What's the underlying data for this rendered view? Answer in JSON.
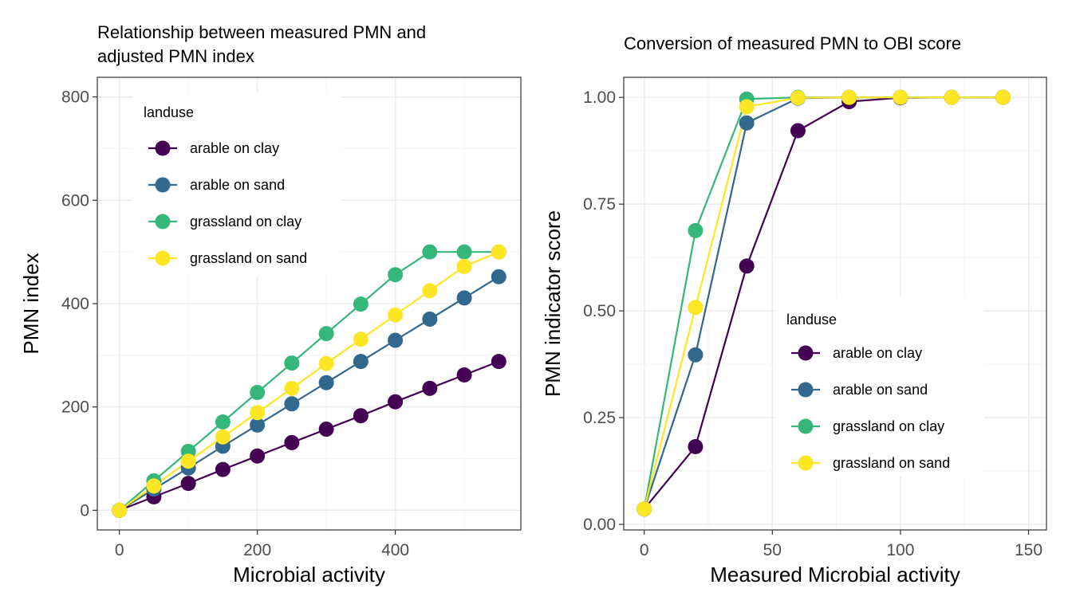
{
  "colors": {
    "arable on clay": "#440154",
    "arable on sand": "#31688E",
    "grassland on clay": "#35B779",
    "grassland on sand": "#FDE725"
  },
  "chart_data": [
    {
      "type": "line",
      "title_lines": [
        "Relationship between measured PMN and",
        "adjusted PMN index"
      ],
      "xlabel": "Microbial activity",
      "ylabel": "PMN index",
      "xlim": [
        -32,
        582
      ],
      "ylim": [
        -38,
        838
      ],
      "xticks": [
        0,
        200,
        400
      ],
      "yticks": [
        0,
        200,
        400,
        600,
        800
      ],
      "xminor": [
        100,
        300,
        500
      ],
      "yminor": [
        100,
        300,
        500,
        700
      ],
      "grid": true,
      "legend": {
        "title": "landuse",
        "position": "top-left",
        "entries": [
          "arable on clay",
          "arable on sand",
          "grassland on clay",
          "grassland on sand"
        ]
      },
      "x": [
        0,
        50,
        100,
        150,
        200,
        250,
        300,
        350,
        400,
        450,
        500,
        550
      ],
      "series": [
        {
          "name": "arable on clay",
          "values": [
            0,
            26,
            52,
            79,
            105,
            131,
            157,
            183,
            210,
            236,
            262,
            288
          ]
        },
        {
          "name": "arable on sand",
          "values": [
            0,
            41,
            82,
            124,
            165,
            206,
            247,
            288,
            329,
            370,
            411,
            452
          ]
        },
        {
          "name": "grassland on clay",
          "values": [
            0,
            57,
            114,
            171,
            228,
            285,
            342,
            399,
            456,
            500,
            500,
            500
          ]
        },
        {
          "name": "grassland on sand",
          "values": [
            0,
            47,
            95,
            142,
            189,
            236,
            284,
            331,
            378,
            425,
            472,
            500
          ]
        }
      ]
    },
    {
      "type": "line",
      "title_lines": [
        "Conversion of measured PMN to OBI score"
      ],
      "xlabel": "Measured Microbial activity",
      "ylabel": "PMN indicator score",
      "xlim": [
        -8,
        157
      ],
      "ylim": [
        -0.013,
        1.047
      ],
      "xticks": [
        0,
        50,
        100,
        150
      ],
      "yticks": [
        0.0,
        0.25,
        0.5,
        0.75,
        1.0
      ],
      "ytick_labels": [
        "0.00",
        "0.25",
        "0.50",
        "0.75",
        "1.00"
      ],
      "xminor": [
        25,
        75,
        125
      ],
      "yminor": [
        0.125,
        0.375,
        0.625,
        0.875
      ],
      "grid": true,
      "legend": {
        "title": "landuse",
        "position": "bottom-right",
        "entries": [
          "arable on clay",
          "arable on sand",
          "grassland on clay",
          "grassland on sand"
        ]
      },
      "x": [
        0,
        20,
        40,
        60,
        80,
        100,
        120,
        140
      ],
      "series": [
        {
          "name": "arable on clay",
          "values": [
            0.036,
            0.182,
            0.605,
            0.922,
            0.99,
            0.999,
            1.0,
            1.0
          ]
        },
        {
          "name": "arable on sand",
          "values": [
            0.036,
            0.397,
            0.94,
            0.998,
            1.0,
            1.0,
            1.0,
            1.0
          ]
        },
        {
          "name": "grassland on clay",
          "values": [
            0.036,
            0.688,
            0.996,
            1.0,
            1.0,
            1.0,
            1.0,
            1.0
          ]
        },
        {
          "name": "grassland on sand",
          "values": [
            0.036,
            0.508,
            0.978,
            0.999,
            1.0,
            1.0,
            1.0,
            1.0
          ]
        }
      ]
    }
  ]
}
